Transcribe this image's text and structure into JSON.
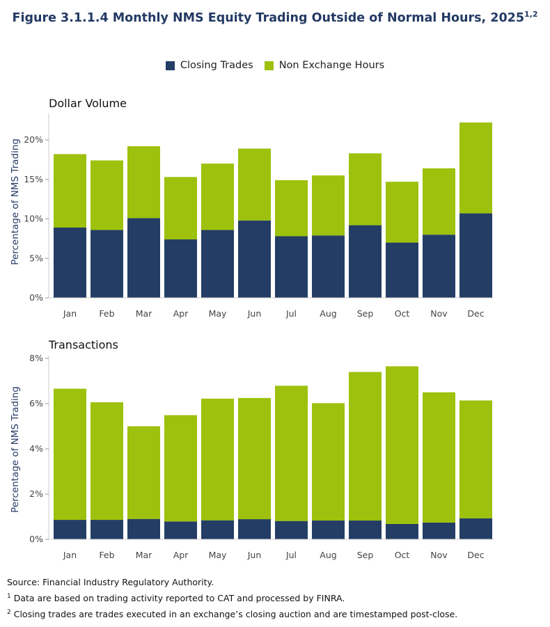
{
  "title": "Figure 3.1.1.4 Monthly NMS Equity Trading Outside of Normal Hours, 2025",
  "title_superscript": "1,2",
  "colors": {
    "closing": "#233d65",
    "nonexchange": "#9dc10c",
    "axis": "#555555"
  },
  "chart_data": [
    {
      "type": "bar",
      "stacked": true,
      "title": "Dollar Volume",
      "ylabel": "Percentage of NMS Trading",
      "ylim": [
        0,
        23
      ],
      "yticks": [
        0,
        5,
        10,
        15,
        20
      ],
      "ytick_labels": [
        "0%",
        "5%",
        "10%",
        "15%",
        "20%"
      ],
      "legend_position": "top-center",
      "categories": [
        "Jan",
        "Feb",
        "Mar",
        "Apr",
        "May",
        "Jun",
        "Jul",
        "Aug",
        "Sep",
        "Oct",
        "Nov",
        "Dec"
      ],
      "series": [
        {
          "name": "Closing Trades",
          "values": [
            8.9,
            8.6,
            10.1,
            7.4,
            8.6,
            9.8,
            7.8,
            7.9,
            9.2,
            7.0,
            8.0,
            10.7
          ]
        },
        {
          "name": "Non Exchange Hours",
          "values": [
            9.3,
            8.8,
            9.1,
            7.9,
            8.4,
            9.1,
            7.1,
            7.6,
            9.1,
            7.7,
            8.4,
            11.5
          ]
        }
      ]
    },
    {
      "type": "bar",
      "stacked": true,
      "title": "Transactions",
      "ylabel": "Percentage of NMS Trading",
      "ylim": [
        0,
        8
      ],
      "yticks": [
        0,
        2,
        4,
        6,
        8
      ],
      "ytick_labels": [
        "0%",
        "2%",
        "4%",
        "6%",
        "8%"
      ],
      "legend_position": "top-center",
      "categories": [
        "Jan",
        "Feb",
        "Mar",
        "Apr",
        "May",
        "Jun",
        "Jul",
        "Aug",
        "Sep",
        "Oct",
        "Nov",
        "Dec"
      ],
      "series": [
        {
          "name": "Closing Trades",
          "values": [
            0.86,
            0.86,
            0.9,
            0.79,
            0.84,
            0.89,
            0.81,
            0.83,
            0.83,
            0.68,
            0.74,
            0.93
          ]
        },
        {
          "name": "Non Exchange Hours",
          "values": [
            5.8,
            5.2,
            4.1,
            4.7,
            5.38,
            5.36,
            5.98,
            5.19,
            6.57,
            6.97,
            5.76,
            5.21
          ]
        }
      ]
    }
  ],
  "notes": {
    "source": "Source: Financial Industry Regulatory Authority.",
    "footnote1_mark": "1",
    "footnote1": "Data are based on trading activity reported to CAT and processed by FINRA.",
    "footnote2_mark": "2",
    "footnote2": "Closing trades are trades executed in an exchange’s closing auction and are timestamped post-close."
  }
}
